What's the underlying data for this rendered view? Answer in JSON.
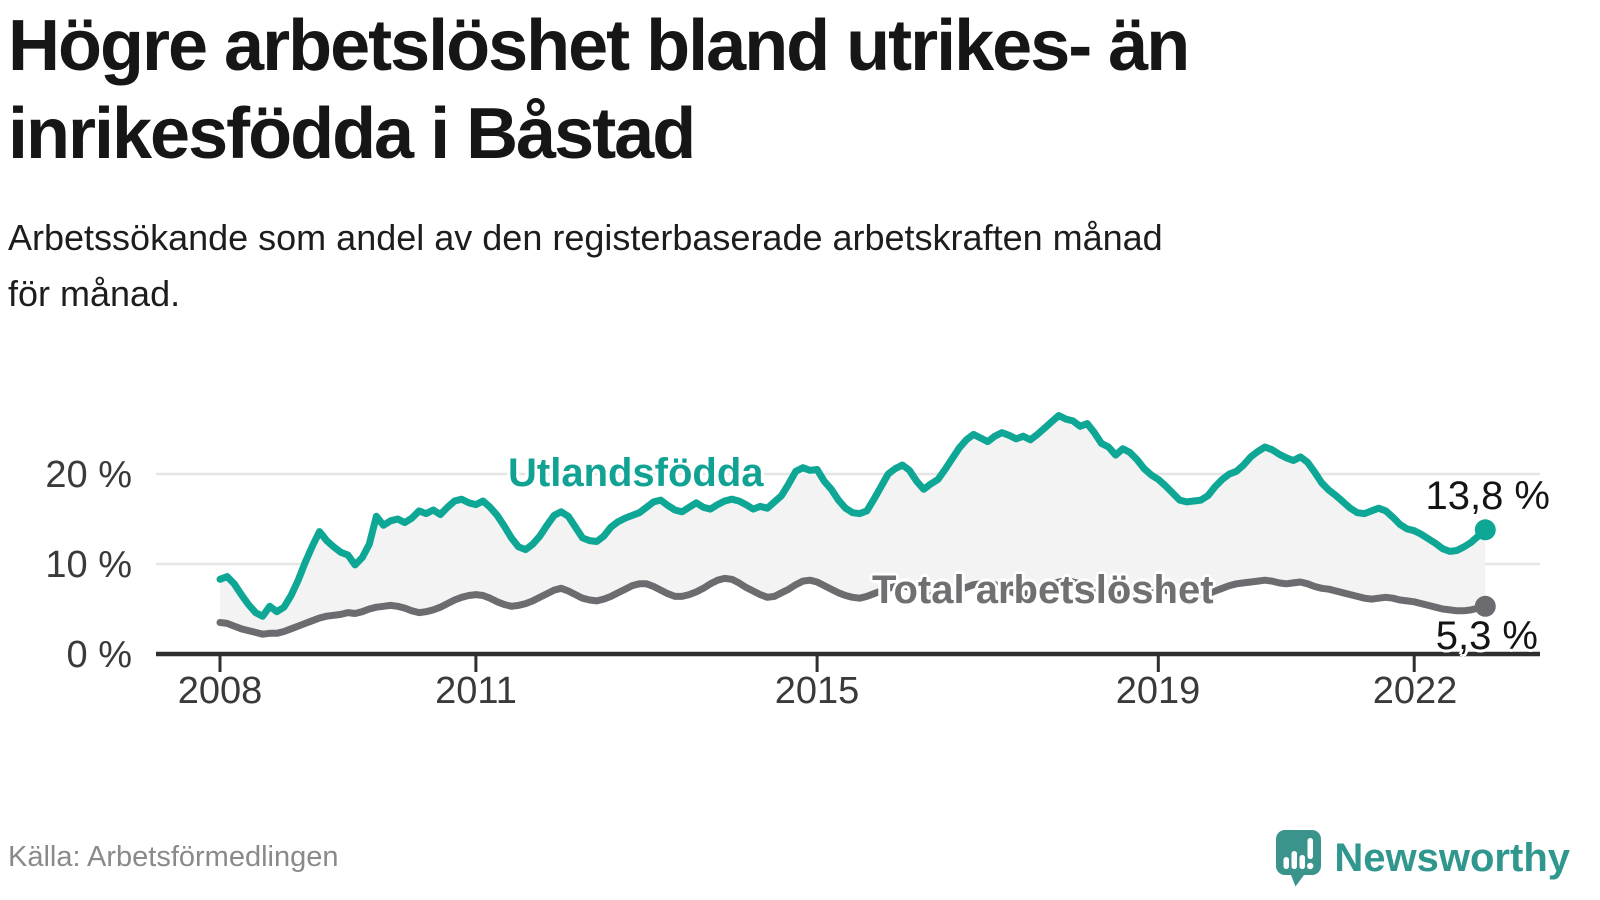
{
  "header": {
    "title": "Högre arbetslöshet bland utrikes- än\ninrikesfödda i Båstad",
    "subtitle": "Arbetssökande som andel av den registerbaserade arbetskraften månad\nför månad."
  },
  "chart_data": {
    "type": "line",
    "title": "Högre arbetslöshet bland utrikes- än inrikesfödda i Båstad",
    "unit": "%",
    "x_start": "2008-01",
    "x_end": "2022-11",
    "x_step_months": 1,
    "x_tick_years": [
      2008,
      2011,
      2015,
      2019,
      2022
    ],
    "x_tick_labels": [
      "2008",
      "2011",
      "2015",
      "2019",
      "2022"
    ],
    "y_ticks": [
      20,
      10,
      0
    ],
    "y_tick_labels": [
      "20 %",
      "10 %",
      "0 %"
    ],
    "ylim": [
      0,
      28
    ],
    "grid": "horizontal",
    "band_fill_between_series": true,
    "legend_position": "inline-labels",
    "series": [
      {
        "name": "Utlandsfödda",
        "color": "#0ea795",
        "end_label": "13,8 %",
        "end_value": 13.8,
        "values": [
          8.3,
          8.6,
          7.8,
          6.6,
          5.5,
          4.6,
          4.2,
          5.3,
          4.7,
          5.2,
          6.5,
          8.2,
          10.2,
          12.0,
          13.6,
          12.6,
          11.9,
          11.3,
          11.0,
          9.9,
          10.7,
          12.2,
          15.3,
          14.3,
          14.8,
          15.0,
          14.6,
          15.1,
          15.9,
          15.6,
          16.0,
          15.5,
          16.3,
          17.0,
          17.2,
          16.8,
          16.6,
          17.0,
          16.3,
          15.4,
          14.2,
          12.9,
          11.9,
          11.6,
          12.2,
          13.1,
          14.3,
          15.4,
          15.8,
          15.3,
          14.1,
          12.9,
          12.6,
          12.5,
          13.1,
          14.1,
          14.7,
          15.1,
          15.4,
          15.7,
          16.3,
          16.9,
          17.1,
          16.5,
          16.0,
          15.8,
          16.3,
          16.8,
          16.3,
          16.1,
          16.6,
          17.0,
          17.2,
          17.0,
          16.6,
          16.1,
          16.4,
          16.2,
          16.9,
          17.6,
          18.9,
          20.3,
          20.7,
          20.4,
          20.5,
          19.2,
          18.3,
          17.1,
          16.2,
          15.7,
          15.6,
          15.9,
          17.2,
          18.6,
          20.0,
          20.6,
          21.0,
          20.4,
          19.2,
          18.3,
          18.9,
          19.4,
          20.5,
          21.7,
          22.9,
          23.8,
          24.4,
          24.0,
          23.6,
          24.2,
          24.6,
          24.3,
          23.9,
          24.2,
          23.8,
          24.4,
          25.1,
          25.8,
          26.5,
          26.1,
          25.9,
          25.3,
          25.6,
          24.6,
          23.4,
          23.0,
          22.1,
          22.8,
          22.4,
          21.6,
          20.6,
          19.9,
          19.4,
          18.7,
          17.9,
          17.1,
          16.9,
          17.0,
          17.1,
          17.6,
          18.6,
          19.4,
          20.0,
          20.3,
          21.0,
          21.9,
          22.5,
          23.0,
          22.7,
          22.2,
          21.8,
          21.5,
          21.9,
          21.3,
          20.2,
          19.0,
          18.2,
          17.6,
          16.9,
          16.2,
          15.7,
          15.6,
          15.9,
          16.2,
          15.9,
          15.2,
          14.4,
          13.9,
          13.7,
          13.3,
          12.8,
          12.3,
          11.7,
          11.4,
          11.5,
          11.9,
          12.4,
          13.1,
          13.8
        ]
      },
      {
        "name": "Total arbetslöshet",
        "color": "#6c6c70",
        "end_label": "5,3 %",
        "end_value": 5.3,
        "values": [
          3.5,
          3.4,
          3.1,
          2.8,
          2.6,
          2.4,
          2.2,
          2.3,
          2.3,
          2.5,
          2.8,
          3.1,
          3.4,
          3.7,
          4.0,
          4.2,
          4.3,
          4.4,
          4.6,
          4.5,
          4.7,
          5.0,
          5.2,
          5.3,
          5.4,
          5.3,
          5.1,
          4.8,
          4.6,
          4.7,
          4.9,
          5.2,
          5.6,
          6.0,
          6.3,
          6.5,
          6.6,
          6.5,
          6.2,
          5.8,
          5.5,
          5.3,
          5.4,
          5.6,
          5.9,
          6.3,
          6.7,
          7.1,
          7.3,
          7.0,
          6.6,
          6.2,
          6.0,
          5.9,
          6.1,
          6.4,
          6.8,
          7.2,
          7.6,
          7.8,
          7.8,
          7.5,
          7.1,
          6.7,
          6.4,
          6.4,
          6.6,
          6.9,
          7.3,
          7.8,
          8.2,
          8.4,
          8.3,
          7.9,
          7.4,
          7.0,
          6.6,
          6.3,
          6.4,
          6.8,
          7.2,
          7.7,
          8.1,
          8.2,
          8.0,
          7.6,
          7.2,
          6.8,
          6.5,
          6.3,
          6.2,
          6.4,
          6.7,
          7.0,
          7.3,
          7.5,
          7.6,
          7.4,
          7.1,
          6.7,
          6.4,
          6.3,
          6.5,
          6.8,
          7.1,
          7.4,
          7.7,
          7.8,
          7.9,
          7.7,
          7.4,
          7.0,
          6.7,
          6.6,
          6.8,
          7.1,
          7.4,
          7.7,
          8.0,
          8.1,
          8.0,
          7.8,
          7.5,
          7.1,
          6.8,
          6.6,
          6.5,
          6.7,
          6.9,
          7.1,
          7.3,
          7.4,
          7.3,
          7.1,
          6.8,
          6.5,
          6.3,
          6.2,
          6.4,
          6.7,
          7.0,
          7.3,
          7.6,
          7.8,
          7.9,
          8.0,
          8.1,
          8.2,
          8.1,
          7.9,
          7.8,
          7.9,
          8.0,
          7.8,
          7.5,
          7.3,
          7.2,
          7.0,
          6.8,
          6.6,
          6.4,
          6.2,
          6.1,
          6.2,
          6.3,
          6.2,
          6.0,
          5.9,
          5.8,
          5.6,
          5.4,
          5.2,
          5.0,
          4.9,
          4.8,
          4.8,
          4.9,
          5.1,
          5.3
        ]
      }
    ]
  },
  "colors": {
    "accent_teal": "#0ea795",
    "line_gray": "#6c6c70",
    "band_fill": "#f3f3f3",
    "axis": "#2f2f2f",
    "grid": "#e5e5e5",
    "brand_teal": "#3b948b"
  },
  "footer": {
    "source": "Källa: Arbetsförmedlingen",
    "brand": "Newsworthy"
  }
}
